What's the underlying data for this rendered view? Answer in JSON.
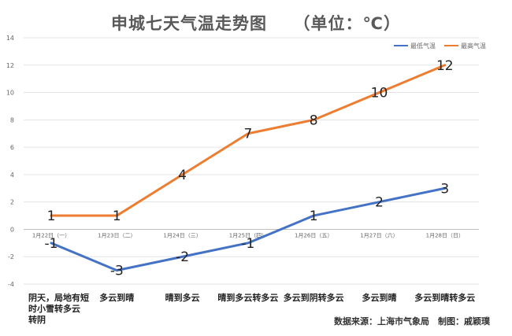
{
  "chart_data": {
    "type": "line",
    "title": "申城七天气温走势图　　（单位：℃）",
    "categories": [
      "1月22日（一）",
      "1月23日（二）",
      "1月24日（三）",
      "1月25日（四）",
      "1月26日（五）",
      "1月27日（六）",
      "1月28日（日）"
    ],
    "weather": [
      "阴天，局地有短时小雪转多云转阴",
      "多云到晴",
      "晴到多云",
      "晴到多云转多云",
      "多云到阴转多云",
      "多云到晴",
      "多云到晴转多云"
    ],
    "series": [
      {
        "name": "最低气温",
        "values": [
          -1,
          -3,
          -2,
          -1,
          1,
          2,
          3
        ],
        "color": "#4472c4"
      },
      {
        "name": "最高气温",
        "values": [
          1,
          1,
          4,
          7,
          8,
          10,
          12
        ],
        "color": "#ed7d31"
      }
    ],
    "ylim": [
      -4,
      14
    ],
    "yticks": [
      -4,
      -2,
      0,
      2,
      4,
      6,
      8,
      10,
      12,
      14
    ],
    "grid": true,
    "legend": "top-right"
  },
  "footer": {
    "source": "数据来源：上海市气象局　制图：戚颖璞"
  }
}
